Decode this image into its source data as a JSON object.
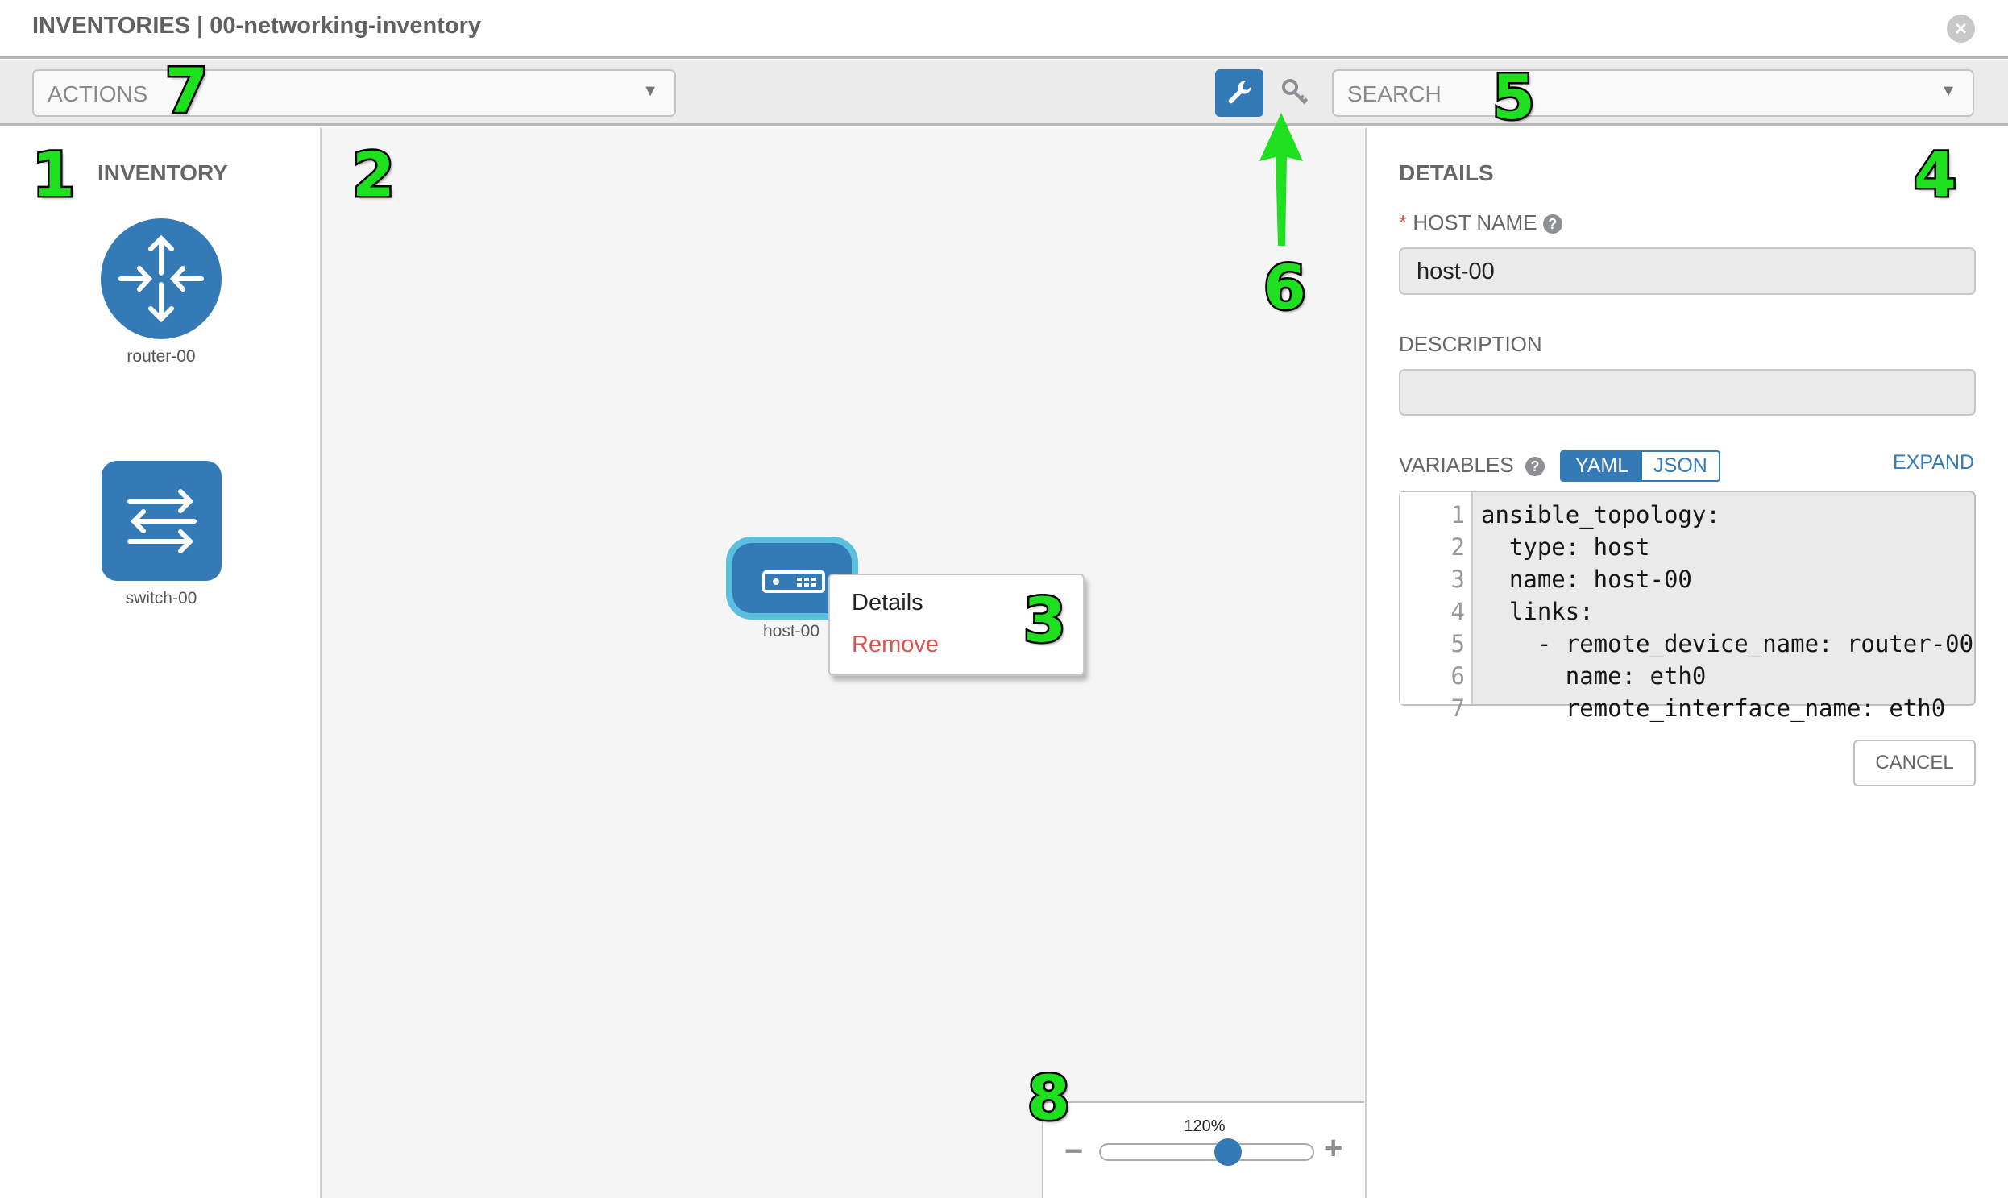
{
  "header": {
    "title": "INVENTORIES | 00-networking-inventory",
    "close_icon": "close-circle-icon"
  },
  "toolbar": {
    "actions_placeholder": "ACTIONS",
    "search_placeholder": "SEARCH",
    "wrench_icon": "wrench-icon",
    "key_icon": "key-icon",
    "active_color": "#337ab7"
  },
  "inventory": {
    "title": "INVENTORY",
    "items": [
      {
        "label": "router-00",
        "icon": "router-icon"
      },
      {
        "label": "switch-00",
        "icon": "switch-icon"
      }
    ]
  },
  "canvas": {
    "node": {
      "label": "host-00",
      "icon": "server-icon"
    },
    "context_menu": {
      "details": "Details",
      "remove": "Remove"
    },
    "zoom": {
      "value_label": "120%",
      "minus": "−",
      "plus": "+",
      "level_fraction": 0.6
    }
  },
  "details": {
    "title": "DETAILS",
    "required_mark": "*",
    "host_name_label": "HOST NAME",
    "host_name_value": "host-00",
    "description_label": "DESCRIPTION",
    "description_value": "",
    "variables_label": "VARIABLES",
    "yaml": "YAML",
    "json": "JSON",
    "expand": "EXPAND",
    "cancel": "CANCEL",
    "code_lines": [
      {
        "n": "1",
        "t": "ansible_topology:"
      },
      {
        "n": "2",
        "t": "  type: host"
      },
      {
        "n": "3",
        "t": "  name: host-00"
      },
      {
        "n": "4",
        "t": "  links:"
      },
      {
        "n": "5",
        "t": "    - remote_device_name: router-00"
      },
      {
        "n": "6",
        "t": "      name: eth0"
      },
      {
        "n": "7",
        "t": "      remote_interface_name: eth0"
      }
    ]
  },
  "annotations": {
    "a1": "1",
    "a2": "2",
    "a3": "3",
    "a4": "4",
    "a5": "5",
    "a6": "6",
    "a7": "7",
    "a8": "8"
  }
}
